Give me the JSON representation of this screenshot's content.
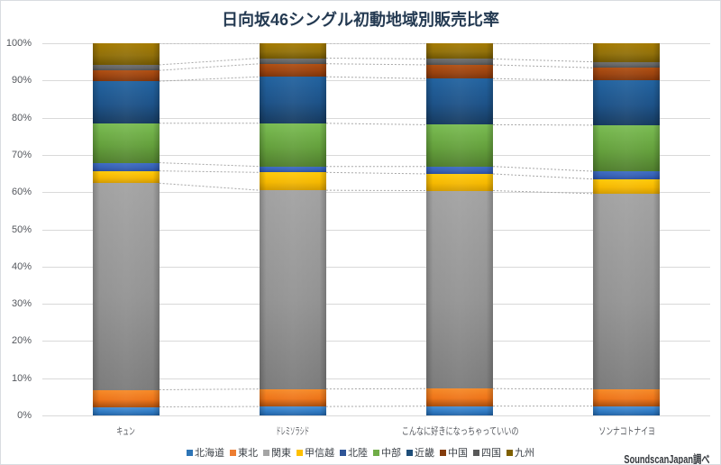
{
  "title": "日向坂46シングル初動地域別販売比率",
  "source_note": "SoundscanJapan調べ",
  "chart_data": {
    "type": "bar",
    "stacked": true,
    "percent_stacked": true,
    "title": "日向坂46シングル初動地域別販売比率",
    "categories": [
      "キュン",
      "ドレミソラシド",
      "こんなに好きになっちゃっていいの",
      "ソンナコトナイヨ"
    ],
    "series": [
      {
        "name": "北海道",
        "values": [
          2.3,
          2.4,
          2.5,
          2.5
        ],
        "color": "#2E79C2",
        "light": "#4A8FD3",
        "dark": "#2262A4"
      },
      {
        "name": "東北",
        "values": [
          4.6,
          4.7,
          4.7,
          4.6
        ],
        "color": "#EE7419",
        "light": "#F68A28",
        "dark": "#A84D0C"
      },
      {
        "name": "関東",
        "values": [
          55.5,
          53.4,
          53.2,
          52.5
        ],
        "color": "#939393",
        "light": "#A2A2A2",
        "dark": "#7C7C7C"
      },
      {
        "name": "甲信越",
        "values": [
          3.3,
          4.8,
          4.5,
          3.9
        ],
        "color": "#F5B800",
        "light": "#FFCA0A",
        "dark": "#D29B00"
      },
      {
        "name": "北陸",
        "values": [
          2.2,
          1.6,
          2.0,
          2.1
        ],
        "color": "#3560B4",
        "light": "#3E6CC4",
        "dark": "#2A4E9E"
      },
      {
        "name": "中部",
        "values": [
          10.6,
          11.6,
          11.2,
          12.4
        ],
        "color": "#64A03C",
        "light": "#7ABC52",
        "dark": "#4F7D2D"
      },
      {
        "name": "近畿",
        "values": [
          11.3,
          12.5,
          12.4,
          12.0
        ],
        "color": "#1D5288",
        "light": "#2263A0",
        "dark": "#163A5F"
      },
      {
        "name": "中国",
        "values": [
          2.9,
          3.5,
          3.7,
          3.4
        ],
        "color": "#9A420E",
        "light": "#B04F12",
        "dark": "#7E340A"
      },
      {
        "name": "四国",
        "values": [
          1.5,
          1.5,
          1.6,
          1.6
        ],
        "color": "#626262",
        "light": "#6E6E6E",
        "dark": "#4F4F4F"
      },
      {
        "name": "九州",
        "values": [
          5.8,
          4.0,
          4.2,
          5.0
        ],
        "color": "#91700A",
        "light": "#A57B00",
        "dark": "#6F5500"
      }
    ],
    "ylim": [
      0,
      100
    ],
    "yticks": [
      "0%",
      "10%",
      "20%",
      "30%",
      "40%",
      "50%",
      "60%",
      "70%",
      "80%",
      "90%",
      "100%"
    ],
    "grid": true,
    "legend_position": "bottom",
    "legend_swatch_colors": [
      "#2E75B6",
      "#ED7D31",
      "#A5A5A5",
      "#FFC000",
      "#2F5597",
      "#70AD47",
      "#1F4E79",
      "#843C0C",
      "#595959",
      "#7F6000"
    ],
    "gridline_color": "#D9D9D9",
    "connector_color": "#A6A6A6",
    "title_color": "#243A52"
  }
}
